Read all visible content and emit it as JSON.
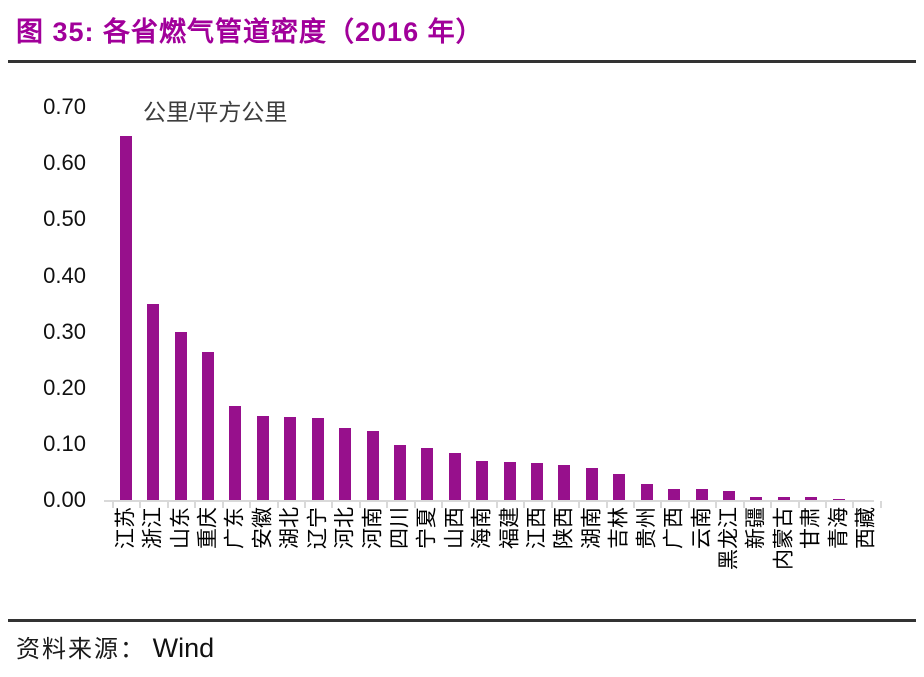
{
  "title": "图 35: 各省燃气管道密度（2016 年）",
  "source": {
    "label": "资料来源：",
    "name": "Wind"
  },
  "colors": {
    "title": "#A1009A",
    "bar": "#97108C",
    "rule": "#333333",
    "axis": "#D9D9D9",
    "text": "#111111"
  },
  "chart_data": {
    "type": "bar",
    "title": "各省燃气管道密度（2016 年）",
    "unit_label": "公里/平方公里",
    "xlabel": "",
    "ylabel": "公里/平方公里",
    "ylim": [
      0,
      0.7
    ],
    "ytick_step": 0.1,
    "ytick_labels": [
      "0.70",
      "0.60",
      "0.50",
      "0.40",
      "0.30",
      "0.20",
      "0.10",
      "0.00"
    ],
    "grid": false,
    "legend": "none",
    "bar_color": "#97108C",
    "categories": [
      "江苏",
      "浙江",
      "山东",
      "重庆",
      "广东",
      "安徽",
      "湖北",
      "辽宁",
      "河北",
      "河南",
      "四川",
      "宁夏",
      "山西",
      "海南",
      "福建",
      "江西",
      "陕西",
      "湖南",
      "吉林",
      "贵州",
      "广西",
      "云南",
      "黑龙江",
      "新疆",
      "内蒙古",
      "甘肃",
      "青海",
      "西藏"
    ],
    "values": [
      0.65,
      0.35,
      0.3,
      0.265,
      0.17,
      0.151,
      0.149,
      0.147,
      0.13,
      0.125,
      0.1,
      0.094,
      0.086,
      0.072,
      0.07,
      0.067,
      0.065,
      0.059,
      0.049,
      0.03,
      0.022,
      0.021,
      0.018,
      0.008,
      0.008,
      0.008,
      0.004,
      0.001
    ]
  }
}
